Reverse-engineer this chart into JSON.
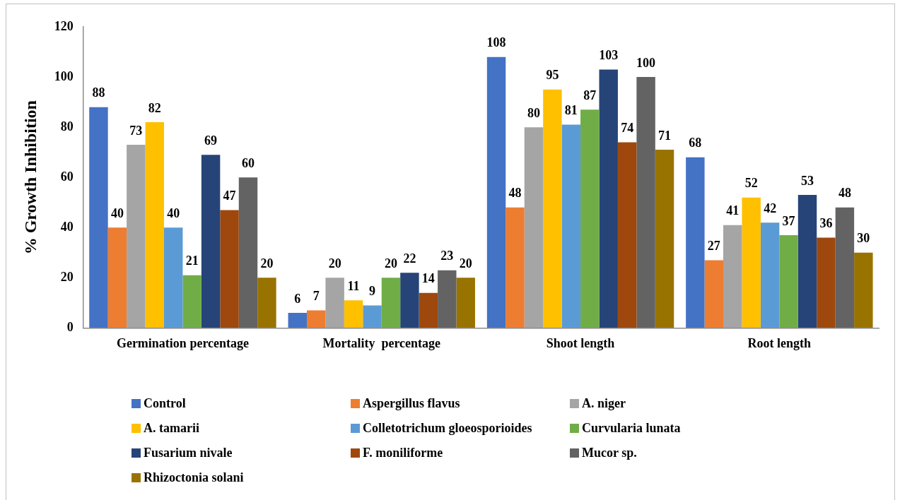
{
  "chart_data": {
    "type": "bar",
    "ylabel": "% Growth Inhibition",
    "categories": [
      "Germination percentage",
      "Mortality  percentage",
      "Shoot length",
      "Root length"
    ],
    "series": [
      {
        "name": "Control",
        "color": "#4472c4",
        "values": [
          88,
          6,
          108,
          68
        ]
      },
      {
        "name": "Aspergillus flavus",
        "color": "#ed7d31",
        "values": [
          40,
          7,
          48,
          27
        ]
      },
      {
        "name": "A. niger",
        "color": "#a5a5a5",
        "values": [
          73,
          20,
          80,
          41
        ]
      },
      {
        "name": "A. tamarii",
        "color": "#ffc000",
        "values": [
          82,
          11,
          95,
          52
        ]
      },
      {
        "name": "Colletotrichum gloeosporioides",
        "color": "#5b9bd5",
        "values": [
          40,
          9,
          81,
          42
        ]
      },
      {
        "name": "Curvularia lunata",
        "color": "#70ad47",
        "values": [
          21,
          20,
          87,
          37
        ]
      },
      {
        "name": "Fusarium nivale",
        "color": "#264478",
        "values": [
          69,
          22,
          103,
          53
        ]
      },
      {
        "name": "F. moniliforme",
        "color": "#9e480e",
        "values": [
          47,
          14,
          74,
          36
        ]
      },
      {
        "name": "Mucor sp.",
        "color": "#636363",
        "values": [
          60,
          23,
          100,
          48
        ]
      },
      {
        "name": "Rhizoctonia solani",
        "color": "#997300",
        "values": [
          20,
          20,
          71,
          30
        ]
      }
    ],
    "ylim": [
      0,
      120
    ],
    "yticks": [
      0,
      20,
      40,
      60,
      80,
      100,
      120
    ],
    "grid": false,
    "legend": "bottom",
    "data_labels": true
  }
}
